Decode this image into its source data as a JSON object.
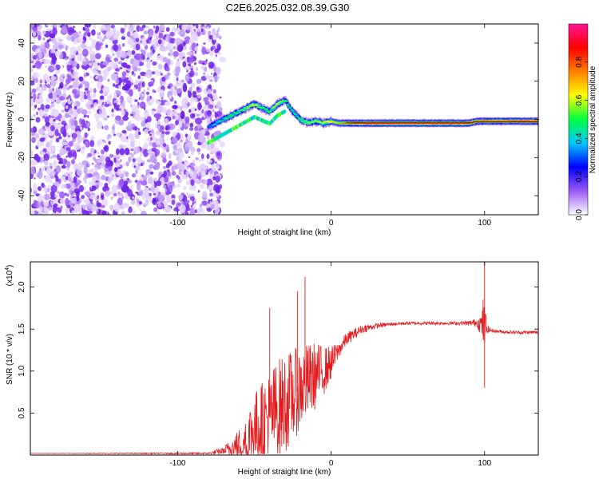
{
  "title": "C2E6.2025.032.08.39.G30",
  "chart_data": [
    {
      "type": "heatmap",
      "xlabel": "Height of straight line (km)",
      "ylabel": "Frequency (Hz)",
      "xlim": [
        -196,
        135
      ],
      "ylim": [
        -50,
        50
      ],
      "xticks": [
        -100,
        0,
        100
      ],
      "xtick_labels": [
        "-100",
        "0",
        "100"
      ],
      "yticks": [
        -40,
        -20,
        0,
        20,
        40
      ],
      "ytick_labels": [
        "-40",
        "-20",
        "0",
        "20",
        "40"
      ],
      "grid": false,
      "colorbar": {
        "label": "Normalized spectral amplitude",
        "range": [
          0,
          1
        ],
        "ticks": [
          0.0,
          0.2,
          0.4,
          0.6,
          0.8
        ],
        "tick_labels": [
          "0.0",
          "0.2",
          "0.4",
          "0.6",
          "0.8"
        ],
        "colormap": [
          "#ffffff",
          "#9b59f5",
          "#0000ff",
          "#00c8ff",
          "#00ff40",
          "#ffff00",
          "#ff8000",
          "#ff0000",
          "#ff1493"
        ]
      },
      "noise_region_x": [
        -196,
        -72
      ],
      "ridge": {
        "x": [
          -80,
          -75,
          -70,
          -65,
          -60,
          -55,
          -50,
          -45,
          -40,
          -35,
          -30,
          -25,
          -20,
          -15,
          -10,
          -5,
          0,
          5,
          10,
          20,
          40,
          60,
          80,
          90,
          95,
          100,
          110,
          135
        ],
        "y": [
          -4,
          -2,
          0,
          2,
          4,
          6,
          8,
          6,
          4,
          8,
          10,
          4,
          0,
          -2,
          -1,
          -2,
          -1,
          -2,
          -2,
          -2,
          -2,
          -2,
          -2,
          -2,
          -1,
          -1,
          -1,
          -1
        ],
        "amplitude": [
          0.3,
          0.4,
          0.45,
          0.5,
          0.5,
          0.55,
          0.6,
          0.5,
          0.5,
          0.6,
          0.5,
          0.45,
          0.5,
          0.55,
          0.55,
          0.6,
          0.65,
          0.7,
          0.8,
          0.9,
          0.95,
          0.95,
          0.95,
          0.9,
          0.85,
          0.85,
          0.85,
          0.9
        ]
      }
    },
    {
      "type": "line",
      "xlabel": "Height of straight line (km)",
      "ylabel": "SNR (10 * v/v)",
      "y_multiplier": "(x10",
      "y_multiplier_exp": "4",
      "xlim": [
        -196,
        135
      ],
      "ylim": [
        0,
        2.3
      ],
      "xticks": [
        -100,
        0,
        100
      ],
      "xtick_labels": [
        "-100",
        "0",
        "100"
      ],
      "yticks": [
        0.5,
        1.0,
        1.5,
        2.0
      ],
      "ytick_labels": [
        "0.5",
        "1.0",
        "1.5",
        "2.0"
      ],
      "grid": false,
      "series": [
        {
          "color": "#e41a1c",
          "envelope_x": [
            -196,
            -80,
            -70,
            -60,
            -55,
            -50,
            -45,
            -40,
            -35,
            -30,
            -25,
            -20,
            -15,
            -10,
            -5,
            0,
            5,
            10,
            20,
            30,
            40,
            50,
            60,
            70,
            80,
            90,
            95,
            98,
            100,
            102,
            105,
            110,
            120,
            135
          ],
          "envelope_y": [
            0.02,
            0.02,
            0.05,
            0.12,
            0.2,
            0.3,
            0.38,
            0.45,
            0.55,
            0.62,
            0.7,
            0.8,
            0.88,
            0.95,
            1.0,
            1.1,
            1.25,
            1.38,
            1.5,
            1.54,
            1.56,
            1.57,
            1.57,
            1.57,
            1.57,
            1.57,
            1.58,
            1.55,
            1.52,
            1.5,
            1.48,
            1.47,
            1.46,
            1.46
          ],
          "noise_amplitude": [
            0.0,
            0.01,
            0.05,
            0.2,
            0.35,
            0.45,
            0.5,
            0.55,
            0.6,
            0.6,
            0.55,
            0.5,
            0.45,
            0.4,
            0.3,
            0.2,
            0.1,
            0.08,
            0.05,
            0.03,
            0.02,
            0.02,
            0.02,
            0.02,
            0.02,
            0.03,
            0.05,
            0.15,
            0.3,
            0.05,
            0.02,
            0.02,
            0.02,
            0.02
          ],
          "peaks": [
            {
              "x": -17,
              "y": 2.12
            },
            {
              "x": -22,
              "y": 1.95
            },
            {
              "x": -40,
              "y": 1.75
            },
            {
              "x": 100,
              "y": 2.3
            },
            {
              "x": 99,
              "y": 1.85
            },
            {
              "x": 100,
              "y": 0.8
            }
          ]
        }
      ]
    }
  ]
}
